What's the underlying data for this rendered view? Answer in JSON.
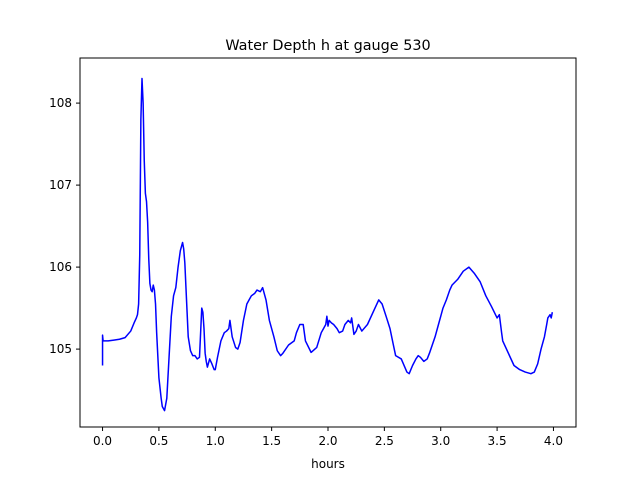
{
  "chart_data": {
    "type": "line",
    "title": "Water Depth h at gauge 530",
    "xlabel": "hours",
    "ylabel": "",
    "xlim": [
      -0.2,
      4.2
    ],
    "ylim": [
      104.05,
      108.55
    ],
    "xticks": [
      0.0,
      0.5,
      1.0,
      1.5,
      2.0,
      2.5,
      3.0,
      3.5,
      4.0
    ],
    "xtick_labels": [
      "0.0",
      "0.5",
      "1.0",
      "1.5",
      "2.0",
      "2.5",
      "3.0",
      "3.5",
      "4.0"
    ],
    "yticks": [
      105,
      106,
      107,
      108
    ],
    "ytick_labels": [
      "105",
      "106",
      "107",
      "108"
    ],
    "grid": false,
    "legend": "none",
    "series": [
      {
        "color": "#0000ff",
        "x": [
          0.0,
          0.0,
          0.005,
          0.01,
          0.05,
          0.1,
          0.15,
          0.2,
          0.25,
          0.28,
          0.3,
          0.31,
          0.32,
          0.33,
          0.34,
          0.35,
          0.36,
          0.37,
          0.38,
          0.39,
          0.4,
          0.41,
          0.42,
          0.43,
          0.44,
          0.45,
          0.46,
          0.47,
          0.48,
          0.5,
          0.52,
          0.53,
          0.55,
          0.57,
          0.59,
          0.61,
          0.63,
          0.65,
          0.67,
          0.69,
          0.71,
          0.72,
          0.73,
          0.74,
          0.75,
          0.76,
          0.78,
          0.8,
          0.82,
          0.84,
          0.86,
          0.88,
          0.89,
          0.9,
          0.91,
          0.92,
          0.93,
          0.95,
          0.97,
          0.99,
          1.0,
          1.02,
          1.05,
          1.08,
          1.1,
          1.12,
          1.13,
          1.15,
          1.18,
          1.2,
          1.22,
          1.25,
          1.28,
          1.3,
          1.32,
          1.35,
          1.37,
          1.4,
          1.42,
          1.45,
          1.48,
          1.52,
          1.55,
          1.58,
          1.6,
          1.65,
          1.7,
          1.72,
          1.75,
          1.78,
          1.8,
          1.85,
          1.9,
          1.94,
          1.96,
          1.98,
          1.99,
          2.0,
          2.01,
          2.03,
          2.05,
          2.08,
          2.1,
          2.13,
          2.15,
          2.18,
          2.2,
          2.21,
          2.23,
          2.25,
          2.27,
          2.3,
          2.35,
          2.4,
          2.45,
          2.48,
          2.52,
          2.55,
          2.58,
          2.6,
          2.65,
          2.7,
          2.72,
          2.75,
          2.78,
          2.8,
          2.82,
          2.85,
          2.88,
          2.9,
          2.95,
          2.98,
          3.0,
          3.02,
          3.05,
          3.08,
          3.1,
          3.15,
          3.2,
          3.25,
          3.3,
          3.35,
          3.4,
          3.45,
          3.5,
          3.52,
          3.54,
          3.55,
          3.6,
          3.65,
          3.7,
          3.75,
          3.8,
          3.83,
          3.86,
          3.89,
          3.92,
          3.94,
          3.95,
          3.97,
          3.98,
          3.99
        ],
        "y": [
          104.8,
          105.17,
          105.1,
          105.1,
          105.1,
          105.11,
          105.12,
          105.14,
          105.22,
          105.32,
          105.38,
          105.42,
          105.55,
          106.15,
          107.8,
          108.3,
          108.0,
          107.3,
          106.9,
          106.8,
          106.55,
          106.1,
          105.8,
          105.72,
          105.7,
          105.78,
          105.72,
          105.55,
          105.2,
          104.65,
          104.4,
          104.3,
          104.25,
          104.4,
          104.9,
          105.4,
          105.65,
          105.75,
          106.0,
          106.2,
          106.3,
          106.22,
          106.05,
          105.75,
          105.45,
          105.15,
          104.98,
          104.92,
          104.92,
          104.88,
          104.9,
          105.5,
          105.45,
          105.25,
          104.95,
          104.85,
          104.78,
          104.88,
          104.82,
          104.75,
          104.75,
          104.9,
          105.1,
          105.2,
          105.22,
          105.25,
          105.35,
          105.15,
          105.02,
          105.0,
          105.08,
          105.35,
          105.55,
          105.6,
          105.65,
          105.68,
          105.72,
          105.7,
          105.75,
          105.6,
          105.35,
          105.15,
          104.98,
          104.92,
          104.95,
          105.05,
          105.1,
          105.2,
          105.3,
          105.3,
          105.1,
          104.96,
          105.02,
          105.2,
          105.25,
          105.3,
          105.4,
          105.28,
          105.35,
          105.32,
          105.3,
          105.25,
          105.2,
          105.22,
          105.3,
          105.35,
          105.32,
          105.38,
          105.18,
          105.22,
          105.3,
          105.22,
          105.3,
          105.45,
          105.6,
          105.55,
          105.38,
          105.25,
          105.05,
          104.92,
          104.88,
          104.72,
          104.7,
          104.8,
          104.88,
          104.92,
          104.9,
          104.85,
          104.88,
          104.95,
          105.15,
          105.3,
          105.4,
          105.5,
          105.6,
          105.72,
          105.78,
          105.85,
          105.95,
          106.0,
          105.92,
          105.82,
          105.65,
          105.52,
          105.38,
          105.42,
          105.2,
          105.1,
          104.95,
          104.8,
          104.75,
          104.72,
          104.7,
          104.72,
          104.82,
          105.0,
          105.15,
          105.3,
          105.38,
          105.42,
          105.38,
          105.45
        ]
      }
    ]
  }
}
